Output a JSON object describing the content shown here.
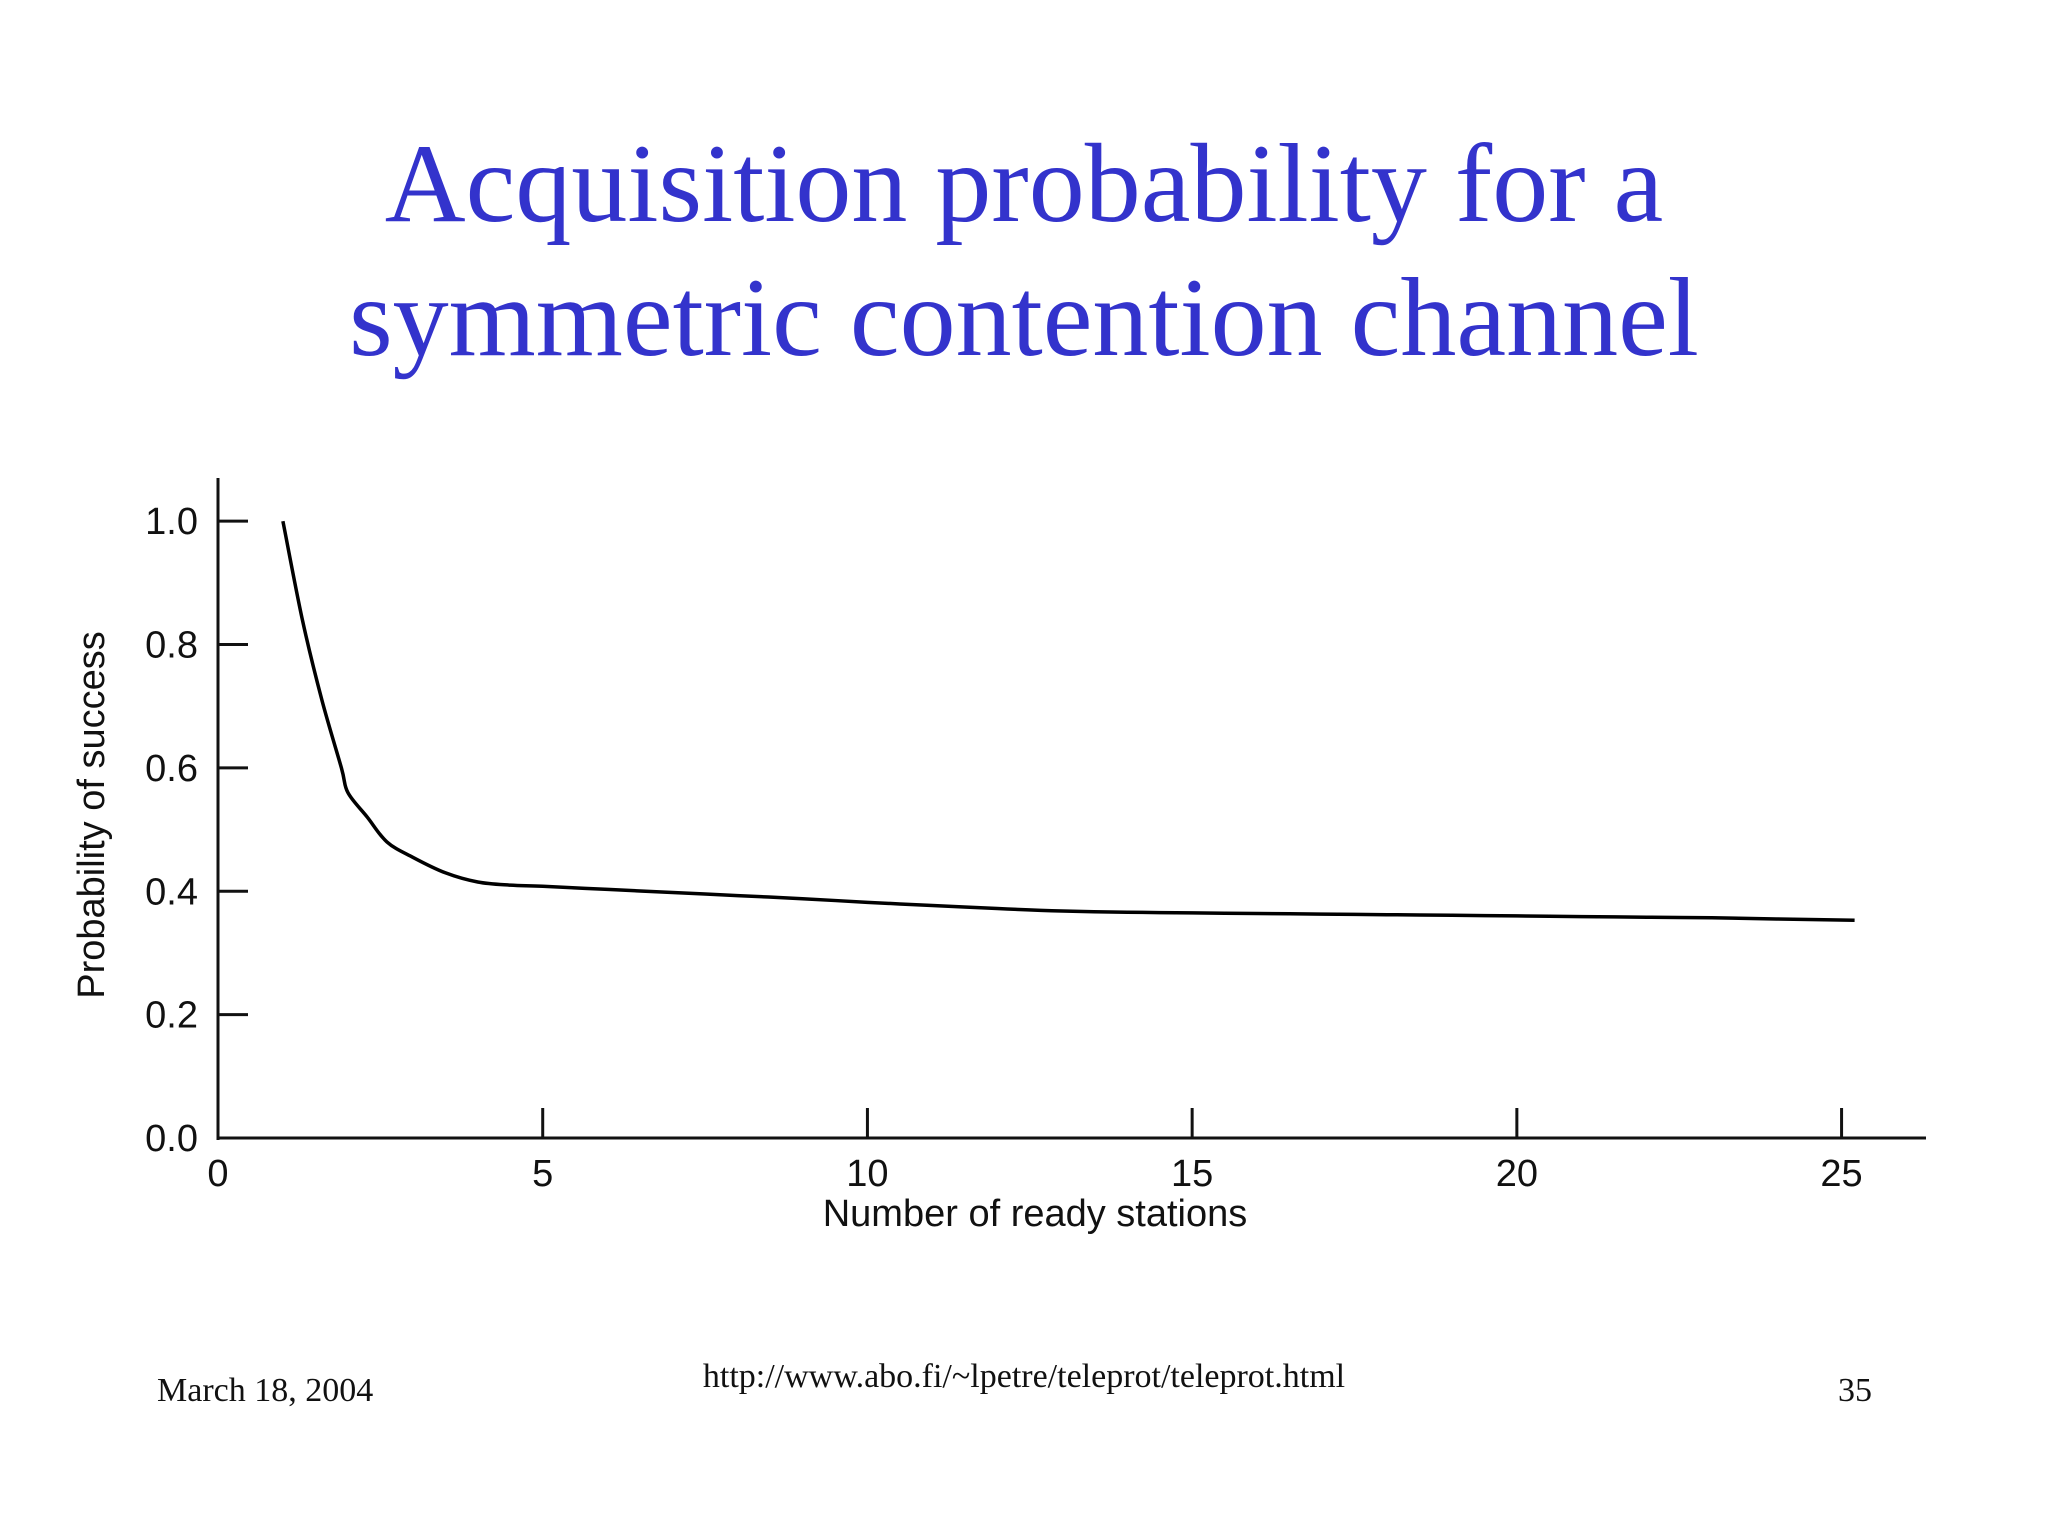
{
  "slide": {
    "title_line_1": "Acquisition probability for a",
    "title_line_2": "symmetric contention channel",
    "footer_date": "March 18, 2004",
    "footer_url": "http://www.abo.fi/~lpetre/teleprot/teleprot.html",
    "page_number": "35"
  },
  "colors": {
    "title": "#3333cc",
    "axis": "#111111",
    "line": "#000000",
    "background": "#ffffff"
  },
  "chart_data": {
    "type": "line",
    "title": "",
    "xlabel": "Number of ready stations",
    "ylabel": "Probability of success",
    "xlim": [
      0,
      26.3
    ],
    "ylim": [
      0,
      1.07
    ],
    "grid": false,
    "x_ticks": [
      0,
      5,
      10,
      15,
      20,
      25
    ],
    "y_ticks": [
      0.0,
      0.2,
      0.4,
      0.6,
      0.8,
      1.0
    ],
    "x_tick_labels": [
      "0",
      "5",
      "10",
      "15",
      "20",
      "25"
    ],
    "y_tick_labels": [
      "0.0",
      "0.2",
      "0.4",
      "0.6",
      "0.8",
      "1.0"
    ],
    "series": [
      {
        "x": [
          1,
          1.3,
          1.6,
          1.9,
          2,
          2.3,
          2.6,
          3,
          3.5,
          4,
          4.5,
          5,
          6,
          7,
          8,
          9,
          10,
          11,
          12,
          13,
          14,
          15,
          16,
          17,
          18,
          19,
          20,
          21,
          22,
          23,
          24,
          25.2
        ],
        "y": [
          1.0,
          0.84,
          0.71,
          0.6,
          0.56,
          0.52,
          0.48,
          0.455,
          0.43,
          0.415,
          0.41,
          0.408,
          0.403,
          0.398,
          0.393,
          0.388,
          0.382,
          0.377,
          0.372,
          0.368,
          0.366,
          0.365,
          0.364,
          0.363,
          0.362,
          0.361,
          0.36,
          0.359,
          0.358,
          0.357,
          0.355,
          0.353
        ]
      }
    ]
  }
}
